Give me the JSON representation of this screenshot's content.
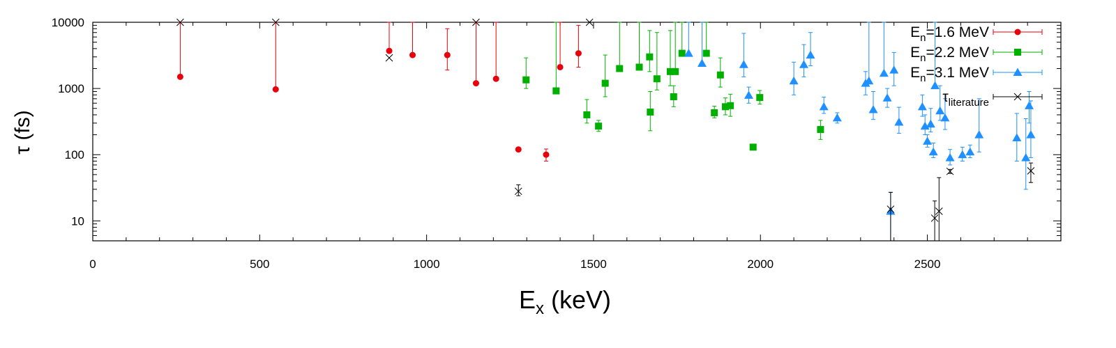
{
  "chart_data": {
    "type": "scatter",
    "title": "",
    "x_axis": {
      "label": "E",
      "label_sub": "x",
      "label_rest": " (keV)",
      "range": [
        0,
        2900
      ],
      "ticks": [
        0,
        500,
        1000,
        1500,
        2000,
        2500
      ],
      "tick_labels": [
        "0",
        "500",
        "1000",
        "1500",
        "2000",
        "2500"
      ],
      "minor_ticks": [
        100,
        200,
        300,
        400,
        600,
        700,
        800,
        900,
        1100,
        1200,
        1300,
        1400,
        1600,
        1700,
        1800,
        1900,
        2100,
        2200,
        2300,
        2400,
        2600,
        2700,
        2800
      ]
    },
    "y_axis": {
      "label": "τ (fs)",
      "scale": "log",
      "range": [
        5,
        10000
      ],
      "ticks": [
        10,
        100,
        1000,
        10000
      ],
      "tick_labels": [
        "10",
        "100",
        "1000",
        "10000"
      ]
    },
    "grid": false,
    "legend_position": "top-right",
    "series": [
      {
        "name": "En=1.6 MeV",
        "legend_main": "E",
        "legend_sub": "n",
        "legend_rest": "=1.6 MeV",
        "color": "#e8000b",
        "marker": "circle",
        "points": [
          {
            "x": 262,
            "y": 1500,
            "lo": 1500,
            "hi": 10000
          },
          {
            "x": 548,
            "y": 970,
            "lo": 970,
            "hi": 10000
          },
          {
            "x": 888,
            "y": 3700,
            "lo": 3700,
            "hi": 10000
          },
          {
            "x": 958,
            "y": 3200,
            "lo": 3200,
            "hi": 10000
          },
          {
            "x": 1062,
            "y": 3200,
            "lo": 1900,
            "hi": 8000
          },
          {
            "x": 1148,
            "y": 1200,
            "lo": 1200,
            "hi": 10000
          },
          {
            "x": 1208,
            "y": 1400,
            "lo": 1400,
            "hi": 10000
          },
          {
            "x": 1275,
            "y": 120,
            "lo": 112,
            "hi": 128
          },
          {
            "x": 1358,
            "y": 100,
            "lo": 80,
            "hi": 122
          },
          {
            "x": 1400,
            "y": 2100,
            "lo": 2100,
            "hi": 10000
          },
          {
            "x": 1455,
            "y": 3400,
            "lo": 2100,
            "hi": 9000
          }
        ]
      },
      {
        "name": "En=2.2 MeV",
        "legend_main": "E",
        "legend_sub": "n",
        "legend_rest": "=2.2 MeV",
        "color": "#00b000",
        "marker": "square",
        "points": [
          {
            "x": 1298,
            "y": 1350,
            "lo": 1000,
            "hi": 2900
          },
          {
            "x": 1388,
            "y": 920,
            "lo": 920,
            "hi": 10000
          },
          {
            "x": 1480,
            "y": 400,
            "lo": 300,
            "hi": 680
          },
          {
            "x": 1515,
            "y": 270,
            "lo": 225,
            "hi": 330
          },
          {
            "x": 1535,
            "y": 1200,
            "lo": 750,
            "hi": 3200
          },
          {
            "x": 1578,
            "y": 2000,
            "lo": 2000,
            "hi": 10000
          },
          {
            "x": 1637,
            "y": 2100,
            "lo": 2100,
            "hi": 10000
          },
          {
            "x": 1668,
            "y": 3000,
            "lo": 1800,
            "hi": 7500
          },
          {
            "x": 1670,
            "y": 440,
            "lo": 230,
            "hi": 900
          },
          {
            "x": 1690,
            "y": 1400,
            "lo": 950,
            "hi": 7000
          },
          {
            "x": 1730,
            "y": 1800,
            "lo": 1100,
            "hi": 7500
          },
          {
            "x": 1740,
            "y": 750,
            "lo": 530,
            "hi": 1100
          },
          {
            "x": 1745,
            "y": 1800,
            "lo": 1800,
            "hi": 10000
          },
          {
            "x": 1765,
            "y": 3400,
            "lo": 3400,
            "hi": 10000
          },
          {
            "x": 1838,
            "y": 3400,
            "lo": 3400,
            "hi": 10000
          },
          {
            "x": 1862,
            "y": 430,
            "lo": 360,
            "hi": 540
          },
          {
            "x": 1880,
            "y": 1600,
            "lo": 1050,
            "hi": 2900
          },
          {
            "x": 1895,
            "y": 530,
            "lo": 400,
            "hi": 720
          },
          {
            "x": 1910,
            "y": 550,
            "lo": 380,
            "hi": 820
          },
          {
            "x": 1978,
            "y": 130,
            "lo": 122,
            "hi": 138
          },
          {
            "x": 1998,
            "y": 730,
            "lo": 580,
            "hi": 930
          },
          {
            "x": 2180,
            "y": 240,
            "lo": 170,
            "hi": 330
          }
        ]
      },
      {
        "name": "En=3.1 MeV",
        "legend_main": "E",
        "legend_sub": "n",
        "legend_rest": "=3.1 MeV",
        "color": "#1e90ff",
        "marker": "triangle",
        "points": [
          {
            "x": 1785,
            "y": 3400,
            "lo": 3400,
            "hi": 10000
          },
          {
            "x": 1825,
            "y": 2400,
            "lo": 2400,
            "hi": 10000
          },
          {
            "x": 1950,
            "y": 2300,
            "lo": 1500,
            "hi": 6800
          },
          {
            "x": 1965,
            "y": 790,
            "lo": 600,
            "hi": 1050
          },
          {
            "x": 2100,
            "y": 1300,
            "lo": 800,
            "hi": 2500
          },
          {
            "x": 2130,
            "y": 2300,
            "lo": 1500,
            "hi": 4600
          },
          {
            "x": 2150,
            "y": 3200,
            "lo": 2200,
            "hi": 7000
          },
          {
            "x": 2190,
            "y": 530,
            "lo": 420,
            "hi": 740
          },
          {
            "x": 2230,
            "y": 360,
            "lo": 300,
            "hi": 430
          },
          {
            "x": 2315,
            "y": 1200,
            "lo": 800,
            "hi": 1800
          },
          {
            "x": 2325,
            "y": 1300,
            "lo": 1300,
            "hi": 10000
          },
          {
            "x": 2338,
            "y": 480,
            "lo": 340,
            "hi": 900
          },
          {
            "x": 2370,
            "y": 1700,
            "lo": 1700,
            "hi": 10000
          },
          {
            "x": 2380,
            "y": 720,
            "lo": 520,
            "hi": 1000
          },
          {
            "x": 2390,
            "y": 14,
            "lo": 5,
            "hi": 27
          },
          {
            "x": 2400,
            "y": 1900,
            "lo": 1100,
            "hi": 3500
          },
          {
            "x": 2415,
            "y": 310,
            "lo": 210,
            "hi": 520
          },
          {
            "x": 2485,
            "y": 530,
            "lo": 380,
            "hi": 800
          },
          {
            "x": 2493,
            "y": 270,
            "lo": 200,
            "hi": 400
          },
          {
            "x": 2500,
            "y": 160,
            "lo": 130,
            "hi": 200
          },
          {
            "x": 2510,
            "y": 290,
            "lo": 220,
            "hi": 500
          },
          {
            "x": 2518,
            "y": 110,
            "lo": 90,
            "hi": 150
          },
          {
            "x": 2523,
            "y": 1100,
            "lo": 1100,
            "hi": 10000
          },
          {
            "x": 2538,
            "y": 460,
            "lo": 330,
            "hi": 1100
          },
          {
            "x": 2553,
            "y": 360,
            "lo": 240,
            "hi": 700
          },
          {
            "x": 2568,
            "y": 90,
            "lo": 70,
            "hi": 120
          },
          {
            "x": 2605,
            "y": 100,
            "lo": 80,
            "hi": 130
          },
          {
            "x": 2628,
            "y": 110,
            "lo": 90,
            "hi": 140
          },
          {
            "x": 2655,
            "y": 200,
            "lo": 110,
            "hi": 700
          },
          {
            "x": 2768,
            "y": 180,
            "lo": 80,
            "hi": 420
          },
          {
            "x": 2795,
            "y": 90,
            "lo": 30,
            "hi": 350
          },
          {
            "x": 2805,
            "y": 550,
            "lo": 300,
            "hi": 900
          },
          {
            "x": 2810,
            "y": 200,
            "lo": 90,
            "hi": 650
          }
        ]
      },
      {
        "name": "τliterature",
        "legend_main": "τ",
        "legend_sub": "literature",
        "legend_rest": "",
        "color": "#000000",
        "marker": "x",
        "points": [
          {
            "x": 262,
            "y": 10000
          },
          {
            "x": 548,
            "y": 10000
          },
          {
            "x": 888,
            "y": 2900
          },
          {
            "x": 1148,
            "y": 10000
          },
          {
            "x": 1275,
            "y": 28,
            "lo": 24,
            "hi": 35
          },
          {
            "x": 1488,
            "y": 10000
          },
          {
            "x": 2390,
            "y": 15,
            "lo": 5,
            "hi": 27
          },
          {
            "x": 2522,
            "y": 11,
            "lo": 5,
            "hi": 20
          },
          {
            "x": 2535,
            "y": 14,
            "lo": 5,
            "hi": 45
          },
          {
            "x": 2568,
            "y": 56,
            "lo": 52,
            "hi": 60
          },
          {
            "x": 2810,
            "y": 57,
            "lo": 38,
            "hi": 75
          }
        ]
      }
    ]
  }
}
